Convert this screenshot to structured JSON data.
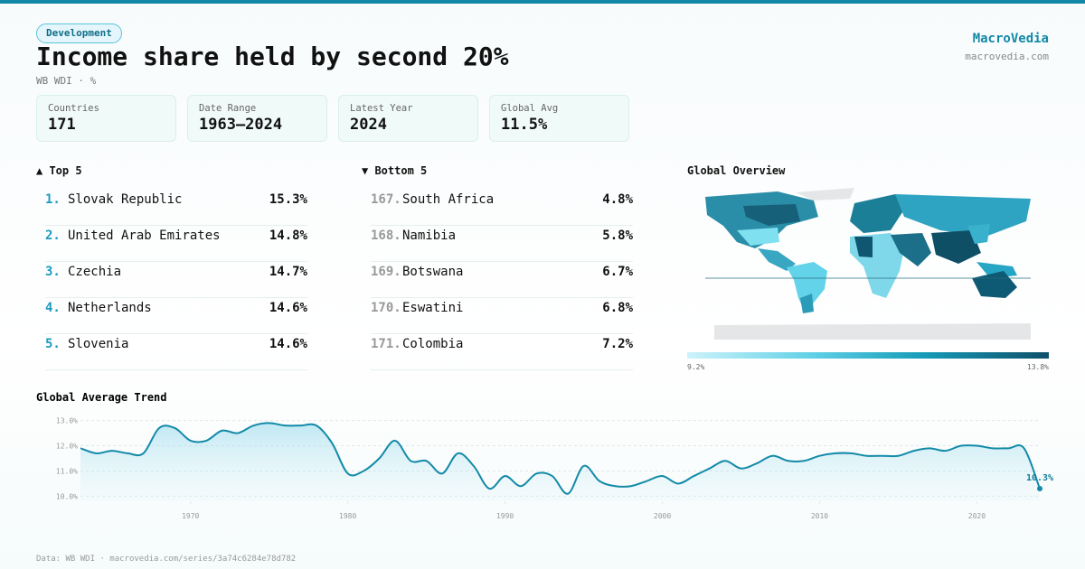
{
  "header": {
    "badge": "Development",
    "title": "Income share held by second 20%",
    "subtitle": "WB WDI · %",
    "brand": "MacroVedia",
    "site": "macrovedia.com"
  },
  "stats": [
    {
      "label": "Countries",
      "value": "171"
    },
    {
      "label": "Date Range",
      "value": "1963–2024"
    },
    {
      "label": "Latest Year",
      "value": "2024"
    },
    {
      "label": "Global Avg",
      "value": "11.5%"
    }
  ],
  "top": {
    "heading": "▲ Top 5",
    "rows": [
      {
        "rank": "1.",
        "name": "Slovak Republic",
        "value": "15.3%"
      },
      {
        "rank": "2.",
        "name": "United Arab Emirates",
        "value": "14.8%"
      },
      {
        "rank": "3.",
        "name": "Czechia",
        "value": "14.7%"
      },
      {
        "rank": "4.",
        "name": "Netherlands",
        "value": "14.6%"
      },
      {
        "rank": "5.",
        "name": "Slovenia",
        "value": "14.6%"
      }
    ]
  },
  "bottom": {
    "heading": "▼ Bottom 5",
    "rows": [
      {
        "rank": "167.",
        "name": "South Africa",
        "value": "4.8%"
      },
      {
        "rank": "168.",
        "name": "Namibia",
        "value": "5.8%"
      },
      {
        "rank": "169.",
        "name": "Botswana",
        "value": "6.7%"
      },
      {
        "rank": "170.",
        "name": "Eswatini",
        "value": "6.8%"
      },
      {
        "rank": "171.",
        "name": "Colombia",
        "value": "7.2%"
      }
    ]
  },
  "map": {
    "title": "Global Overview",
    "scale_min": "9.2%",
    "scale_max": "13.8%"
  },
  "chart_data": {
    "type": "line",
    "title": "Global Average Trend",
    "color": "#138aa8",
    "x": [
      1963,
      1964,
      1965,
      1966,
      1967,
      1968,
      1969,
      1970,
      1971,
      1972,
      1973,
      1974,
      1975,
      1976,
      1977,
      1978,
      1979,
      1980,
      1981,
      1982,
      1983,
      1984,
      1985,
      1986,
      1987,
      1988,
      1989,
      1990,
      1991,
      1992,
      1993,
      1994,
      1995,
      1996,
      1997,
      1998,
      1999,
      2000,
      2001,
      2002,
      2003,
      2004,
      2005,
      2006,
      2007,
      2008,
      2009,
      2010,
      2011,
      2012,
      2013,
      2014,
      2015,
      2016,
      2017,
      2018,
      2019,
      2020,
      2021,
      2022,
      2023,
      2024
    ],
    "values": [
      11.9,
      11.7,
      11.8,
      11.7,
      11.7,
      12.7,
      12.7,
      12.2,
      12.2,
      12.6,
      12.5,
      12.8,
      12.9,
      12.8,
      12.8,
      12.8,
      12.1,
      10.9,
      11.0,
      11.5,
      12.2,
      11.4,
      11.4,
      10.9,
      11.7,
      11.2,
      10.3,
      10.8,
      10.4,
      10.9,
      10.8,
      10.1,
      11.2,
      10.6,
      10.4,
      10.4,
      10.6,
      10.8,
      10.5,
      10.8,
      11.1,
      11.4,
      11.1,
      11.3,
      11.6,
      11.4,
      11.4,
      11.6,
      11.7,
      11.7,
      11.6,
      11.6,
      11.6,
      11.8,
      11.9,
      11.8,
      12.0,
      12.0,
      11.9,
      11.9,
      11.9,
      10.3
    ],
    "value_labels": [
      null,
      null,
      null,
      null,
      null,
      null,
      null,
      null,
      null,
      null,
      null,
      null,
      null,
      null,
      null,
      null,
      null,
      null,
      null,
      null,
      null,
      null,
      null,
      null,
      null,
      null,
      null,
      null,
      null,
      null,
      null,
      null,
      null,
      null,
      null,
      null,
      null,
      null,
      null,
      null,
      null,
      null,
      null,
      null,
      null,
      null,
      null,
      null,
      null,
      null,
      null,
      null,
      null,
      null,
      null,
      null,
      null,
      null,
      null,
      null,
      null,
      "10.3%"
    ],
    "xlim": [
      1963,
      2024
    ],
    "xticks": [
      1970,
      1980,
      1990,
      2000,
      2010,
      2020
    ],
    "ylim": [
      9.8,
      13.2
    ],
    "yticks": [
      {
        "value": 10,
        "label": "10.0%"
      },
      {
        "value": 11,
        "label": "11.0%"
      },
      {
        "value": 12,
        "label": "12.0%"
      },
      {
        "value": 13,
        "label": "13.0%"
      }
    ],
    "grid": true
  },
  "footer": "Data: WB WDI · macrovedia.com/series/3a74c6284e78d782"
}
